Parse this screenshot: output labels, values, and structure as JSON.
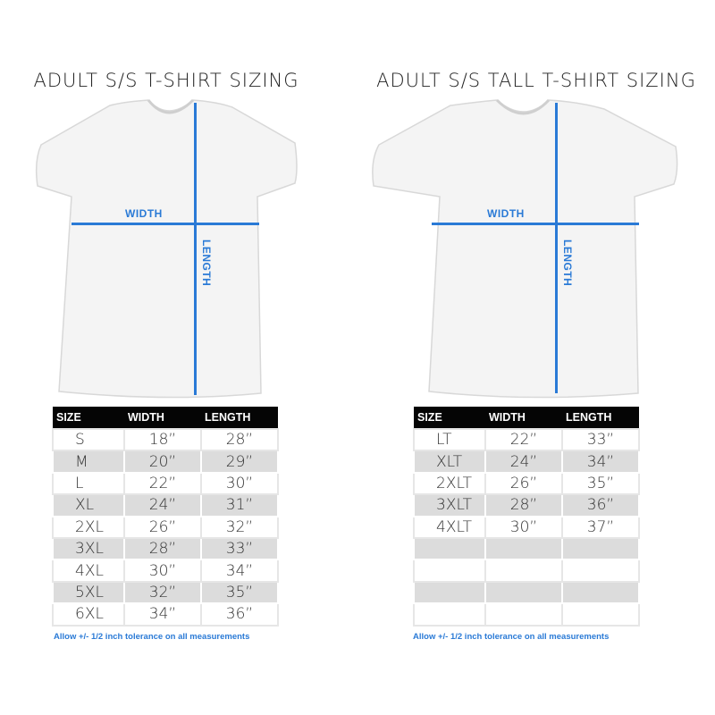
{
  "colors": {
    "accent": "#2a7ad6",
    "header_bg": "#050505",
    "stripe": "#dcdcdc"
  },
  "left": {
    "title": "ADULT S/S T-SHIRT SIZING",
    "width_label": "WIDTH",
    "length_label": "LENGTH",
    "table": {
      "headers": [
        "SIZE",
        "WIDTH",
        "LENGTH"
      ],
      "rows": [
        [
          "S",
          "18”",
          "28”"
        ],
        [
          "M",
          "20”",
          "29”"
        ],
        [
          "L",
          "22”",
          "30”"
        ],
        [
          "XL",
          "24”",
          "31”"
        ],
        [
          "2XL",
          "26”",
          "32”"
        ],
        [
          "3XL",
          "28”",
          "33”"
        ],
        [
          "4XL",
          "30”",
          "34”"
        ],
        [
          "5XL",
          "32”",
          "35”"
        ],
        [
          "6XL",
          "34”",
          "36”"
        ]
      ]
    },
    "note": "Allow +/- 1/2 inch tolerance on all measurements"
  },
  "right": {
    "title": "ADULT S/S TALL T-SHIRT SIZING",
    "width_label": "WIDTH",
    "length_label": "LENGTH",
    "table": {
      "headers": [
        "SIZE",
        "WIDTH",
        "LENGTH"
      ],
      "rows": [
        [
          "LT",
          "22”",
          "33”"
        ],
        [
          "XLT",
          "24”",
          "34”"
        ],
        [
          "2XLT",
          "26”",
          "35”"
        ],
        [
          "3XLT",
          "28”",
          "36”"
        ],
        [
          "4XLT",
          "30”",
          "37”"
        ],
        [
          "",
          "",
          ""
        ],
        [
          "",
          "",
          ""
        ],
        [
          "",
          "",
          ""
        ],
        [
          "",
          "",
          ""
        ]
      ]
    },
    "note": "Allow +/- 1/2 inch tolerance on all measurements"
  }
}
